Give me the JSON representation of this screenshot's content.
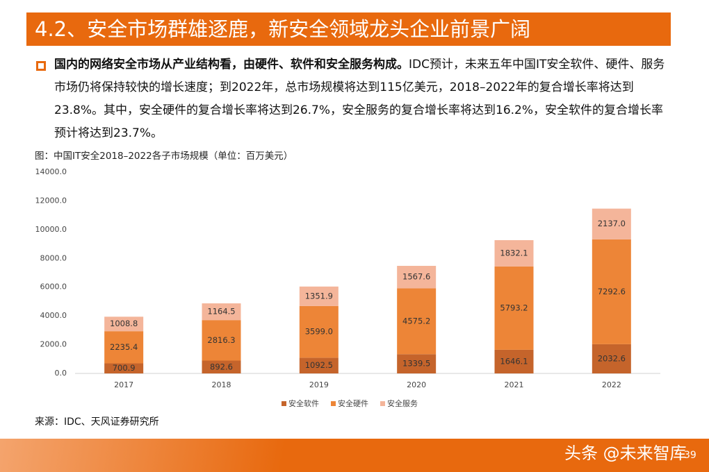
{
  "header": {
    "title": "4.2、安全市场群雄逐鹿，新安全领域龙头企业前景广阔"
  },
  "bullet": {
    "bold": "国内的网络安全市场从产业结构看，由硬件、软件和安全服务构成。",
    "text": "IDC预计，未来五年中国IT安全软件、硬件、服务市场仍将保持较快的增长速度；到2022年，总市场规模将达到115亿美元，2018–2022年的复合增长率将达到23.8%。其中，安全硬件的复合增长率将达到26.7%，安全服务的复合增长率将达到16.2%，安全软件的复合增长率预计将达到23.7%。"
  },
  "chart_data": {
    "type": "stacked_bar",
    "title": "图：中国IT安全2018–2022各子市场规模（单位：百万美元）",
    "categories": [
      "2017",
      "2018",
      "2019",
      "2020",
      "2021",
      "2022"
    ],
    "series": [
      {
        "name": "安全软件",
        "color": "#c5642b",
        "values": [
          700.9,
          892.6,
          1092.5,
          1339.5,
          1646.1,
          2032.6
        ],
        "value_labels": [
          "700.9",
          "892.6",
          "1092.5",
          "1339.5",
          "1646.1",
          "2032.6"
        ]
      },
      {
        "name": "安全硬件",
        "color": "#ed8537",
        "values": [
          2235.4,
          2816.3,
          3599.0,
          4575.2,
          5793.2,
          7292.6
        ],
        "value_labels": [
          "2235.4",
          "2816.3",
          "3599.0",
          "4575.2",
          "5793.2",
          "7292.6"
        ]
      },
      {
        "name": "安全服务",
        "color": "#f4b59a",
        "values": [
          1008.8,
          1164.5,
          1351.9,
          1567.6,
          1832.1,
          2137.0
        ],
        "value_labels": [
          "1008.8",
          "1164.5",
          "1351.9",
          "1567.6",
          "1832.1",
          "2137.0"
        ]
      }
    ],
    "ylim": [
      0,
      14000
    ],
    "yticks": [
      {
        "value": 0,
        "label": "0.0"
      },
      {
        "value": 2000,
        "label": "2000.0"
      },
      {
        "value": 4000,
        "label": "4000.0"
      },
      {
        "value": 6000,
        "label": "6000.0"
      },
      {
        "value": 8000,
        "label": "8000.0"
      },
      {
        "value": 10000,
        "label": "10000.0"
      },
      {
        "value": 12000,
        "label": "12000.0"
      },
      {
        "value": 14000,
        "label": "14000.0"
      }
    ],
    "legend": "bottom"
  },
  "source": "来源：IDC、天风证券研究所",
  "watermark": "头条 @未来智库",
  "page_number": "39"
}
